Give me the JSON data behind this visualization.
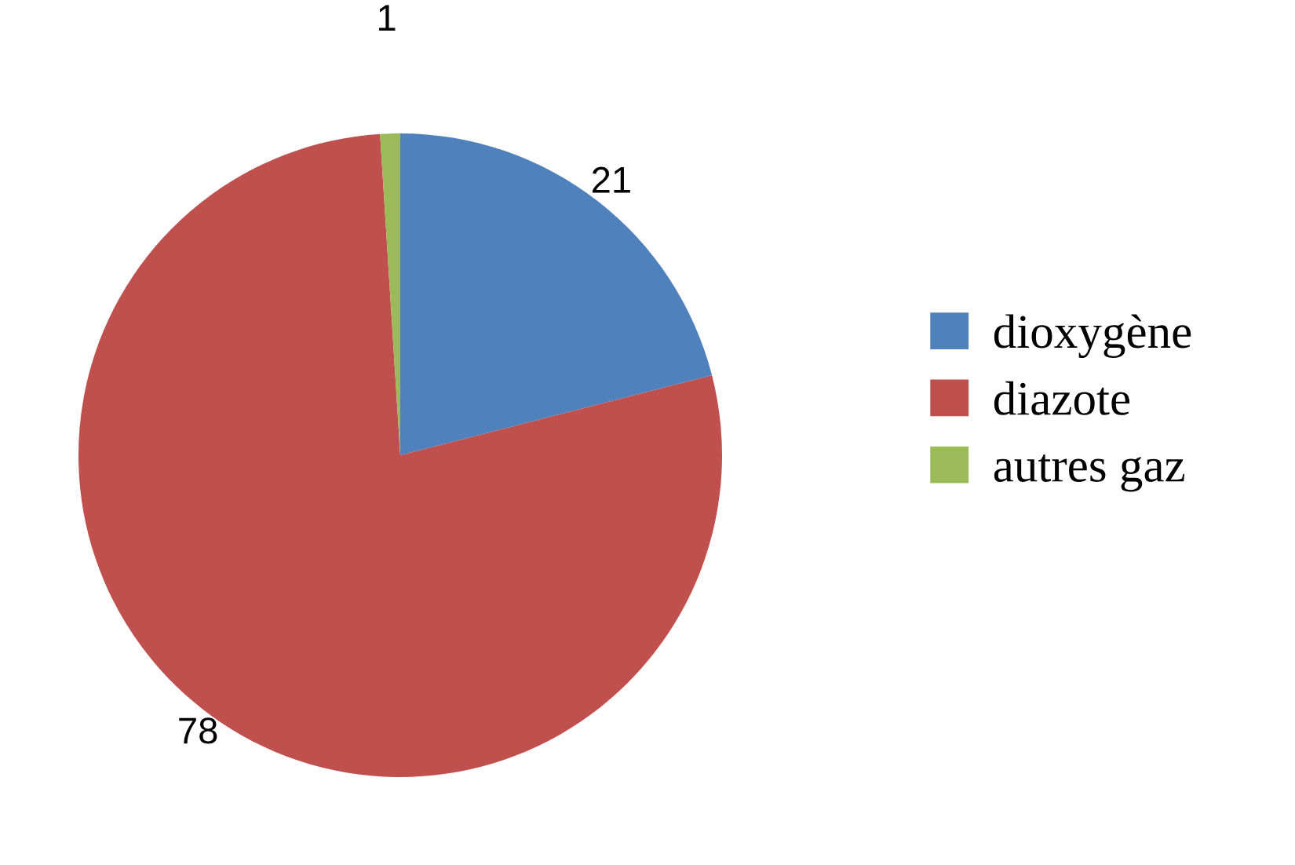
{
  "chart_data": {
    "type": "pie",
    "categories": [
      "dioxygène",
      "diazote",
      "autres gaz"
    ],
    "values": [
      21,
      78,
      1
    ],
    "colors": [
      "#4f81bd",
      "#c0504d",
      "#9bbb59"
    ],
    "data_labels": true,
    "legend": "right"
  }
}
